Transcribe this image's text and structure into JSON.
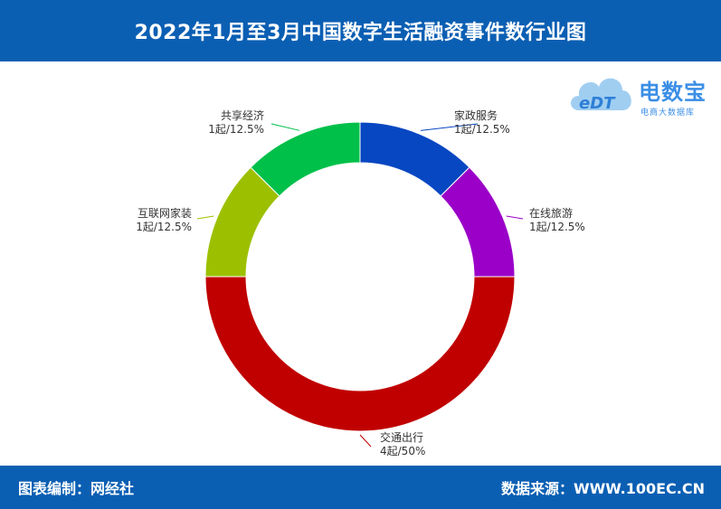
{
  "header": {
    "title": "2022年1月至3月中国数字生活融资事件数行业图"
  },
  "footer": {
    "left": "图表编制：网经社",
    "right": "数据来源：WWW.100EC.CN"
  },
  "logo": {
    "main": "电数宝",
    "sub": "电商大数据库",
    "badge": "eDT"
  },
  "chart_data": {
    "type": "pie",
    "donut": true,
    "title": "2022年1月至3月中国数字生活融资事件数行业图",
    "series": [
      {
        "name": "家政服务",
        "value": 1,
        "count_label": "1起/12.5%",
        "percent": 12.5,
        "color": "#0747c2"
      },
      {
        "name": "在线旅游",
        "value": 1,
        "count_label": "1起/12.5%",
        "percent": 12.5,
        "color": "#9b00c8"
      },
      {
        "name": "交通出行",
        "value": 4,
        "count_label": "4起/50%",
        "percent": 50,
        "color": "#c00000"
      },
      {
        "name": "互联网家装",
        "value": 1,
        "count_label": "1起/12.5%",
        "percent": 12.5,
        "color": "#9cc000"
      },
      {
        "name": "共享经济",
        "value": 1,
        "count_label": "1起/12.5%",
        "percent": 12.5,
        "color": "#00c04a"
      }
    ]
  }
}
